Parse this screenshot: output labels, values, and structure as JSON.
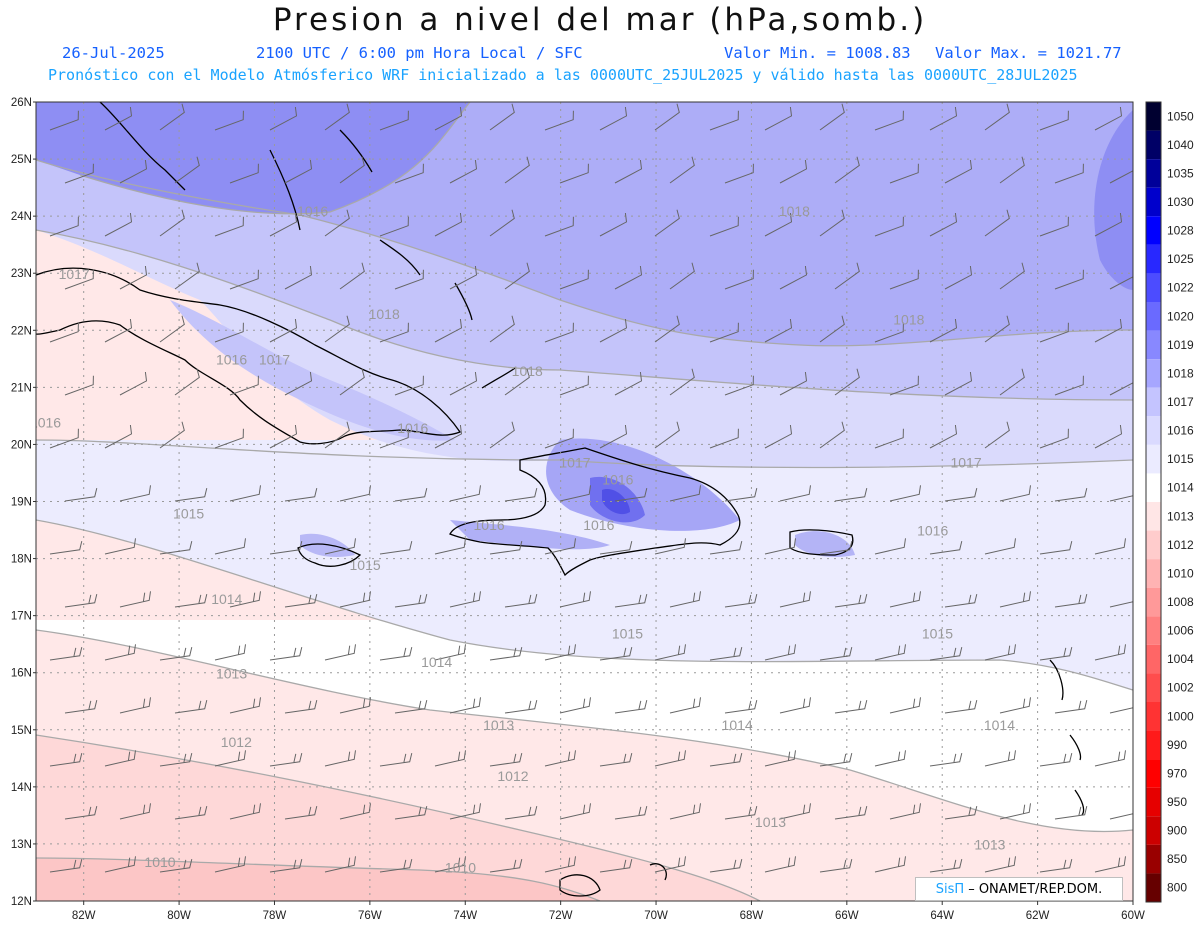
{
  "title": "Presion a nivel del mar (hPa,somb.)",
  "subtitle": {
    "date": "26-Jul-2025",
    "time": "2100 UTC / 6:00 pm Hora Local / SFC",
    "vmin": "Valor Min. = 1008.83",
    "vmax": "Valor Max. = 1021.77",
    "forecast": "Pronóstico con el Modelo Atmósferico WRF inicializado a las 0000UTC_25JUL2025 y válido hasta las  0000UTC_28JUL2025"
  },
  "colors": {
    "subtitle_text": "#1560ff",
    "forecast_text": "#1aa3ff",
    "title_text": "#111111"
  },
  "lat_labels": [
    "26N",
    "25N",
    "24N",
    "23N",
    "22N",
    "21N",
    "20N",
    "19N",
    "18N",
    "17N",
    "16N",
    "15N",
    "14N",
    "13N",
    "12N"
  ],
  "lon_labels": [
    "82W",
    "80W",
    "78W",
    "76W",
    "74W",
    "72W",
    "70W",
    "68W",
    "66W",
    "64W",
    "62W",
    "60W"
  ],
  "colorbar": {
    "levels": [
      "1050",
      "1040",
      "1035",
      "1030",
      "1028",
      "1025",
      "1022",
      "1020",
      "1019",
      "1018",
      "1017",
      "1016",
      "1015",
      "1014",
      "1013",
      "1012",
      "1010",
      "1008",
      "1006",
      "1004",
      "1002",
      "1000",
      "990",
      "970",
      "950",
      "900",
      "850",
      "800"
    ],
    "colors": [
      "#000030",
      "#000066",
      "#00009a",
      "#0000cc",
      "#0000ff",
      "#2828ff",
      "#4c4cff",
      "#6a6aff",
      "#8888ff",
      "#a6a6ff",
      "#c4c4ff",
      "#dadaff",
      "#ebebff",
      "#ffffff",
      "#ffe6e6",
      "#ffcccc",
      "#ffb3b3",
      "#ff9999",
      "#ff8080",
      "#ff6666",
      "#ff4d4d",
      "#ff3333",
      "#ff1a1a",
      "#ff0000",
      "#e60000",
      "#cc0000",
      "#990000",
      "#660000"
    ]
  },
  "contour_labels": [
    {
      "text": "1016",
      "lon": -77.2,
      "lat": 24.0
    },
    {
      "text": "1018",
      "lon": -67.1,
      "lat": 24.0
    },
    {
      "text": "1017",
      "lon": -82.2,
      "lat": 22.9
    },
    {
      "text": "1018",
      "lon": -75.7,
      "lat": 22.2
    },
    {
      "text": "1018",
      "lon": -64.7,
      "lat": 22.1
    },
    {
      "text": "1016",
      "lon": -78.9,
      "lat": 21.4
    },
    {
      "text": "1017",
      "lon": -78.0,
      "lat": 21.4
    },
    {
      "text": "1018",
      "lon": -72.7,
      "lat": 21.2
    },
    {
      "text": "1016",
      "lon": -82.8,
      "lat": 20.3
    },
    {
      "text": "1016",
      "lon": -75.1,
      "lat": 20.2
    },
    {
      "text": "1017",
      "lon": -71.7,
      "lat": 19.6
    },
    {
      "text": "1017",
      "lon": -63.5,
      "lat": 19.6
    },
    {
      "text": "1016",
      "lon": -70.8,
      "lat": 19.3
    },
    {
      "text": "1015",
      "lon": -79.8,
      "lat": 18.7
    },
    {
      "text": "1016",
      "lon": -73.5,
      "lat": 18.5
    },
    {
      "text": "1016",
      "lon": -71.2,
      "lat": 18.5
    },
    {
      "text": "1016",
      "lon": -64.2,
      "lat": 18.4
    },
    {
      "text": "1015",
      "lon": -76.1,
      "lat": 17.8
    },
    {
      "text": "1014",
      "lon": -79.0,
      "lat": 17.2
    },
    {
      "text": "1015",
      "lon": -70.6,
      "lat": 16.6
    },
    {
      "text": "1015",
      "lon": -64.1,
      "lat": 16.6
    },
    {
      "text": "1014",
      "lon": -74.6,
      "lat": 16.1
    },
    {
      "text": "1013",
      "lon": -78.9,
      "lat": 15.9
    },
    {
      "text": "1013",
      "lon": -73.3,
      "lat": 15.0
    },
    {
      "text": "1014",
      "lon": -68.3,
      "lat": 15.0
    },
    {
      "text": "1014",
      "lon": -62.8,
      "lat": 15.0
    },
    {
      "text": "1012",
      "lon": -78.8,
      "lat": 14.7
    },
    {
      "text": "1012",
      "lon": -73.0,
      "lat": 14.1
    },
    {
      "text": "1013",
      "lon": -67.6,
      "lat": 13.3
    },
    {
      "text": "1013",
      "lon": -63.0,
      "lat": 12.9
    },
    {
      "text": "1010",
      "lon": -80.4,
      "lat": 12.6
    },
    {
      "text": "1010",
      "lon": -74.1,
      "lat": 12.5
    }
  ],
  "credit": {
    "logo": "SisΠ",
    "text": "– ONAMET/REP.DOM."
  }
}
